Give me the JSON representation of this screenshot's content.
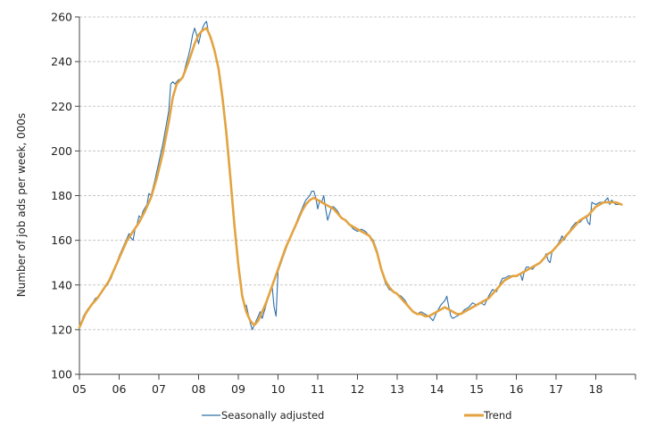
{
  "chart_data": {
    "type": "line",
    "title": "",
    "xlabel": "",
    "ylabel": "Number of job ads per week, 000s",
    "ylim": [
      100,
      260
    ],
    "xlim": [
      5,
      19
    ],
    "grid": true,
    "legend_position": "bottom",
    "x_ticks": [
      5,
      6,
      7,
      8,
      9,
      10,
      11,
      12,
      13,
      14,
      15,
      16,
      17,
      18
    ],
    "x_tick_labels": [
      "05",
      "06",
      "07",
      "08",
      "09",
      "10",
      "11",
      "12",
      "13",
      "14",
      "15",
      "16",
      "17",
      "18"
    ],
    "y_ticks": [
      100,
      120,
      140,
      160,
      180,
      200,
      220,
      240,
      260
    ],
    "y_tick_labels": [
      "100",
      "120",
      "140",
      "160",
      "180",
      "200",
      "220",
      "240",
      "260"
    ],
    "series": [
      {
        "name": "Seasonally adjusted",
        "color": "#2f6fa7",
        "points": [
          [
            5.0,
            121
          ],
          [
            5.1,
            126
          ],
          [
            5.2,
            129
          ],
          [
            5.3,
            131
          ],
          [
            5.4,
            134
          ],
          [
            5.5,
            135
          ],
          [
            5.6,
            138
          ],
          [
            5.7,
            140
          ],
          [
            5.8,
            143
          ],
          [
            5.9,
            148
          ],
          [
            6.0,
            153
          ],
          [
            6.1,
            157
          ],
          [
            6.2,
            161
          ],
          [
            6.25,
            163
          ],
          [
            6.3,
            161
          ],
          [
            6.35,
            160
          ],
          [
            6.4,
            165
          ],
          [
            6.45,
            167
          ],
          [
            6.5,
            171
          ],
          [
            6.55,
            170
          ],
          [
            6.6,
            173
          ],
          [
            6.7,
            176
          ],
          [
            6.75,
            181
          ],
          [
            6.8,
            180
          ],
          [
            6.9,
            187
          ],
          [
            7.0,
            195
          ],
          [
            7.1,
            203
          ],
          [
            7.2,
            213
          ],
          [
            7.25,
            218
          ],
          [
            7.3,
            230
          ],
          [
            7.35,
            231
          ],
          [
            7.4,
            230
          ],
          [
            7.5,
            232
          ],
          [
            7.55,
            232
          ],
          [
            7.6,
            233
          ],
          [
            7.7,
            240
          ],
          [
            7.75,
            243
          ],
          [
            7.8,
            247
          ],
          [
            7.85,
            252
          ],
          [
            7.9,
            255
          ],
          [
            7.95,
            252
          ],
          [
            8.0,
            248
          ],
          [
            8.05,
            252
          ],
          [
            8.1,
            255
          ],
          [
            8.15,
            257
          ],
          [
            8.2,
            258
          ],
          [
            8.25,
            253
          ],
          [
            8.3,
            250
          ],
          [
            8.35,
            249
          ],
          [
            8.4,
            245
          ],
          [
            8.5,
            236
          ],
          [
            8.6,
            225
          ],
          [
            8.7,
            210
          ],
          [
            8.8,
            190
          ],
          [
            8.9,
            168
          ],
          [
            9.0,
            149
          ],
          [
            9.1,
            136
          ],
          [
            9.15,
            130
          ],
          [
            9.2,
            131
          ],
          [
            9.25,
            127
          ],
          [
            9.3,
            123
          ],
          [
            9.35,
            120
          ],
          [
            9.4,
            122
          ],
          [
            9.5,
            126
          ],
          [
            9.55,
            128
          ],
          [
            9.6,
            125
          ],
          [
            9.7,
            131
          ],
          [
            9.8,
            137
          ],
          [
            9.85,
            140
          ],
          [
            9.9,
            130
          ],
          [
            9.95,
            126
          ],
          [
            10.0,
            146
          ],
          [
            10.1,
            151
          ],
          [
            10.2,
            156
          ],
          [
            10.3,
            161
          ],
          [
            10.4,
            165
          ],
          [
            10.5,
            170
          ],
          [
            10.6,
            174
          ],
          [
            10.7,
            178
          ],
          [
            10.8,
            180
          ],
          [
            10.85,
            182
          ],
          [
            10.9,
            182
          ],
          [
            10.95,
            179
          ],
          [
            11.0,
            174
          ],
          [
            11.05,
            178
          ],
          [
            11.1,
            177
          ],
          [
            11.15,
            180
          ],
          [
            11.2,
            174
          ],
          [
            11.25,
            169
          ],
          [
            11.3,
            172
          ],
          [
            11.35,
            175
          ],
          [
            11.4,
            175
          ],
          [
            11.5,
            173
          ],
          [
            11.6,
            170
          ],
          [
            11.7,
            169
          ],
          [
            11.8,
            167
          ],
          [
            11.9,
            165
          ],
          [
            12.0,
            164
          ],
          [
            12.1,
            165
          ],
          [
            12.2,
            164
          ],
          [
            12.3,
            162
          ],
          [
            12.4,
            160
          ],
          [
            12.5,
            155
          ],
          [
            12.6,
            147
          ],
          [
            12.7,
            141
          ],
          [
            12.8,
            138
          ],
          [
            12.9,
            137
          ],
          [
            13.0,
            136
          ],
          [
            13.1,
            135
          ],
          [
            13.2,
            133
          ],
          [
            13.3,
            130
          ],
          [
            13.4,
            128
          ],
          [
            13.5,
            127
          ],
          [
            13.6,
            128
          ],
          [
            13.7,
            127
          ],
          [
            13.8,
            126
          ],
          [
            13.9,
            124
          ],
          [
            14.0,
            128
          ],
          [
            14.1,
            131
          ],
          [
            14.2,
            133
          ],
          [
            14.25,
            135
          ],
          [
            14.3,
            130
          ],
          [
            14.35,
            126
          ],
          [
            14.4,
            125
          ],
          [
            14.5,
            126
          ],
          [
            14.6,
            127
          ],
          [
            14.7,
            129
          ],
          [
            14.8,
            130
          ],
          [
            14.9,
            132
          ],
          [
            15.0,
            131
          ],
          [
            15.1,
            132
          ],
          [
            15.2,
            131
          ],
          [
            15.3,
            135
          ],
          [
            15.4,
            138
          ],
          [
            15.5,
            137
          ],
          [
            15.6,
            141
          ],
          [
            15.65,
            143
          ],
          [
            15.7,
            143
          ],
          [
            15.8,
            144
          ],
          [
            15.9,
            144
          ],
          [
            16.0,
            144
          ],
          [
            16.1,
            145
          ],
          [
            16.15,
            142
          ],
          [
            16.2,
            146
          ],
          [
            16.25,
            148
          ],
          [
            16.3,
            148
          ],
          [
            16.4,
            147
          ],
          [
            16.5,
            149
          ],
          [
            16.6,
            150
          ],
          [
            16.7,
            152
          ],
          [
            16.75,
            154
          ],
          [
            16.8,
            151
          ],
          [
            16.85,
            150
          ],
          [
            16.9,
            155
          ],
          [
            17.0,
            157
          ],
          [
            17.1,
            160
          ],
          [
            17.15,
            162
          ],
          [
            17.2,
            160
          ],
          [
            17.3,
            163
          ],
          [
            17.4,
            166
          ],
          [
            17.5,
            168
          ],
          [
            17.6,
            168
          ],
          [
            17.7,
            170
          ],
          [
            17.75,
            171
          ],
          [
            17.8,
            168
          ],
          [
            17.85,
            167
          ],
          [
            17.9,
            177
          ],
          [
            18.0,
            176
          ],
          [
            18.1,
            177
          ],
          [
            18.2,
            177
          ],
          [
            18.3,
            179
          ],
          [
            18.35,
            176
          ],
          [
            18.4,
            178
          ],
          [
            18.5,
            176
          ],
          [
            18.6,
            176
          ],
          [
            18.65,
            176
          ]
        ]
      },
      {
        "name": "Trend",
        "color": "#e3a341",
        "points": [
          [
            5.0,
            121
          ],
          [
            5.15,
            127
          ],
          [
            5.3,
            131
          ],
          [
            5.45,
            134
          ],
          [
            5.6,
            138
          ],
          [
            5.75,
            142
          ],
          [
            5.9,
            148
          ],
          [
            6.05,
            154
          ],
          [
            6.2,
            160
          ],
          [
            6.35,
            164
          ],
          [
            6.5,
            168
          ],
          [
            6.65,
            173
          ],
          [
            6.8,
            179
          ],
          [
            6.95,
            188
          ],
          [
            7.1,
            199
          ],
          [
            7.25,
            213
          ],
          [
            7.35,
            224
          ],
          [
            7.45,
            230
          ],
          [
            7.6,
            233
          ],
          [
            7.75,
            240
          ],
          [
            7.9,
            248
          ],
          [
            8.0,
            252
          ],
          [
            8.1,
            254
          ],
          [
            8.2,
            255
          ],
          [
            8.3,
            251
          ],
          [
            8.4,
            245
          ],
          [
            8.5,
            237
          ],
          [
            8.6,
            224
          ],
          [
            8.7,
            208
          ],
          [
            8.8,
            188
          ],
          [
            8.9,
            167
          ],
          [
            9.0,
            149
          ],
          [
            9.1,
            135
          ],
          [
            9.2,
            128
          ],
          [
            9.3,
            124
          ],
          [
            9.4,
            122
          ],
          [
            9.5,
            124
          ],
          [
            9.6,
            128
          ],
          [
            9.7,
            132
          ],
          [
            9.8,
            137
          ],
          [
            9.9,
            142
          ],
          [
            10.0,
            147
          ],
          [
            10.1,
            152
          ],
          [
            10.2,
            157
          ],
          [
            10.3,
            161
          ],
          [
            10.4,
            165
          ],
          [
            10.5,
            169
          ],
          [
            10.6,
            173
          ],
          [
            10.7,
            176
          ],
          [
            10.8,
            178
          ],
          [
            10.9,
            179
          ],
          [
            11.0,
            178
          ],
          [
            11.1,
            177
          ],
          [
            11.2,
            176
          ],
          [
            11.3,
            175
          ],
          [
            11.4,
            174
          ],
          [
            11.5,
            172
          ],
          [
            11.6,
            170
          ],
          [
            11.7,
            169
          ],
          [
            11.8,
            167
          ],
          [
            11.9,
            166
          ],
          [
            12.0,
            165
          ],
          [
            12.1,
            164
          ],
          [
            12.2,
            163
          ],
          [
            12.3,
            162
          ],
          [
            12.4,
            159
          ],
          [
            12.5,
            154
          ],
          [
            12.6,
            147
          ],
          [
            12.7,
            142
          ],
          [
            12.8,
            139
          ],
          [
            12.9,
            137
          ],
          [
            13.0,
            136
          ],
          [
            13.1,
            134
          ],
          [
            13.2,
            132
          ],
          [
            13.3,
            130
          ],
          [
            13.4,
            128
          ],
          [
            13.5,
            127
          ],
          [
            13.6,
            127
          ],
          [
            13.7,
            126
          ],
          [
            13.8,
            126
          ],
          [
            13.9,
            127
          ],
          [
            14.0,
            128
          ],
          [
            14.1,
            129
          ],
          [
            14.2,
            130
          ],
          [
            14.3,
            129
          ],
          [
            14.4,
            128
          ],
          [
            14.5,
            127
          ],
          [
            14.6,
            127
          ],
          [
            14.7,
            128
          ],
          [
            14.8,
            129
          ],
          [
            14.9,
            130
          ],
          [
            15.0,
            131
          ],
          [
            15.1,
            132
          ],
          [
            15.2,
            133
          ],
          [
            15.3,
            134
          ],
          [
            15.4,
            136
          ],
          [
            15.5,
            138
          ],
          [
            15.6,
            140
          ],
          [
            15.7,
            142
          ],
          [
            15.8,
            143
          ],
          [
            15.9,
            144
          ],
          [
            16.0,
            144
          ],
          [
            16.1,
            145
          ],
          [
            16.2,
            146
          ],
          [
            16.3,
            147
          ],
          [
            16.4,
            148
          ],
          [
            16.5,
            149
          ],
          [
            16.6,
            150
          ],
          [
            16.7,
            152
          ],
          [
            16.8,
            154
          ],
          [
            16.9,
            155
          ],
          [
            17.0,
            157
          ],
          [
            17.1,
            159
          ],
          [
            17.2,
            161
          ],
          [
            17.3,
            163
          ],
          [
            17.4,
            165
          ],
          [
            17.5,
            167
          ],
          [
            17.6,
            169
          ],
          [
            17.7,
            170
          ],
          [
            17.8,
            171
          ],
          [
            17.9,
            173
          ],
          [
            18.0,
            175
          ],
          [
            18.1,
            176
          ],
          [
            18.2,
            177
          ],
          [
            18.3,
            177
          ],
          [
            18.4,
            177
          ],
          [
            18.5,
            177
          ],
          [
            18.65,
            176
          ]
        ]
      }
    ]
  }
}
